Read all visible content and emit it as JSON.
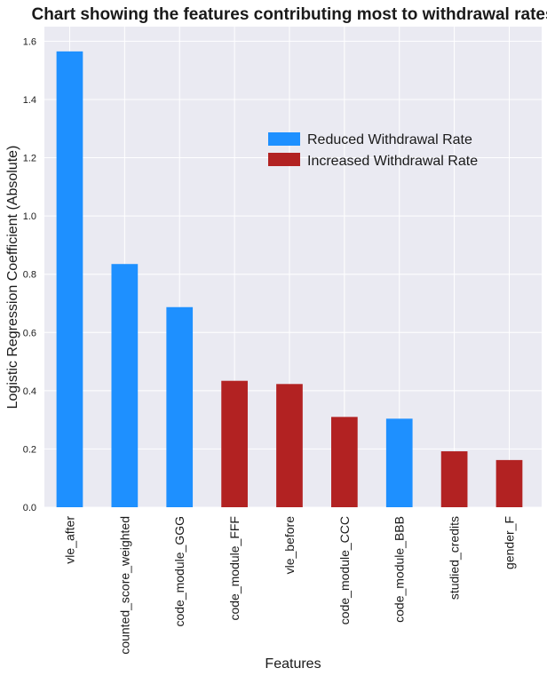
{
  "chart_data": {
    "type": "bar",
    "title": "Chart showing the features contributing most to withdrawal rates",
    "xlabel": "Features",
    "ylabel": "Logistic Regression Coefficient (Absolute)",
    "ylim": [
      0,
      1.65
    ],
    "yticks": [
      "0.0",
      "0.2",
      "0.4",
      "0.6",
      "0.8",
      "1.0",
      "1.2",
      "1.4",
      "1.6"
    ],
    "grid": true,
    "legend_position": "upper-right",
    "background_color": "#eaeaf2",
    "categories": [
      "vle_after",
      "counted_score_weighted",
      "code_module_GGG",
      "code_module_FFF",
      "vle_before",
      "code_module_CCC",
      "code_module_BBB",
      "studied_credits",
      "gender_F"
    ],
    "values": [
      1.565,
      0.835,
      0.687,
      0.434,
      0.423,
      0.31,
      0.304,
      0.192,
      0.162
    ],
    "effect": [
      "reduced",
      "reduced",
      "reduced",
      "increased",
      "increased",
      "increased",
      "reduced",
      "increased",
      "increased"
    ],
    "series": [
      {
        "key": "reduced",
        "name": "Reduced Withdrawal Rate",
        "color": "#1e90ff"
      },
      {
        "key": "increased",
        "name": "Increased Withdrawal Rate",
        "color": "#b22222"
      }
    ]
  }
}
